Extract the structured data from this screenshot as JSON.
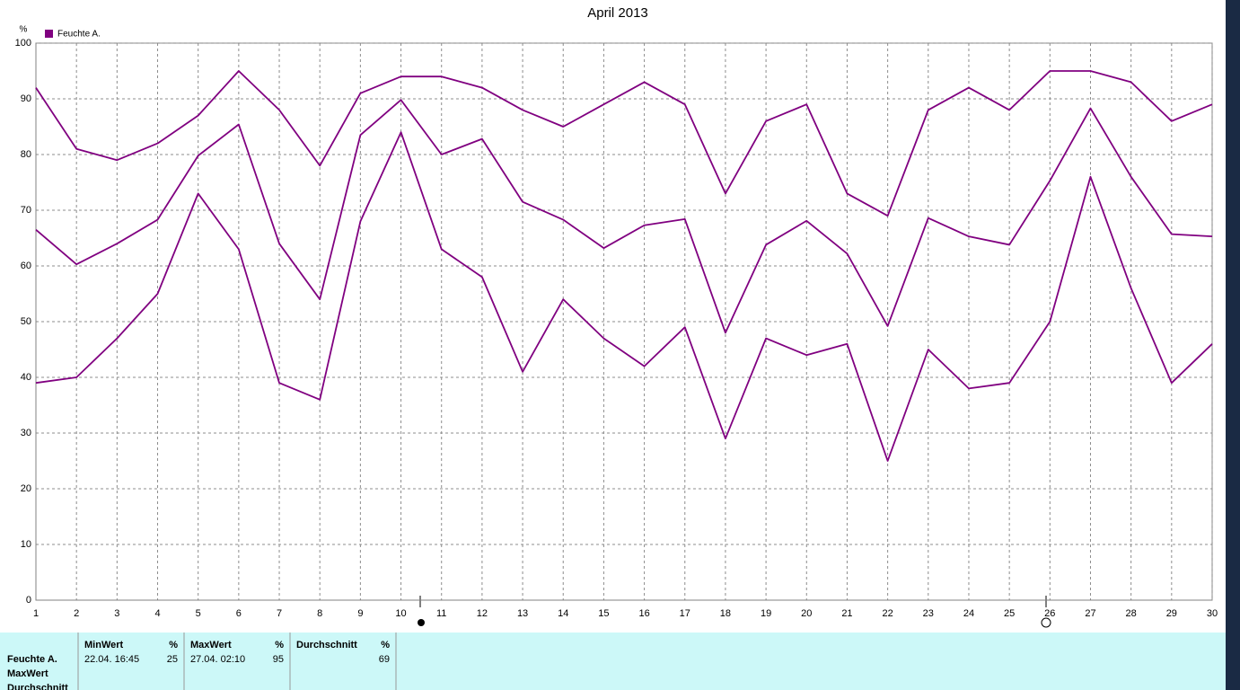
{
  "chart_data": {
    "type": "line",
    "title": "April 2013",
    "y_label": "%",
    "legend": "Feuchte A.",
    "color": "#800080",
    "x": [
      1,
      2,
      3,
      4,
      5,
      6,
      7,
      8,
      9,
      10,
      11,
      12,
      13,
      14,
      15,
      16,
      17,
      18,
      19,
      20,
      21,
      22,
      23,
      24,
      25,
      26,
      27,
      28,
      29,
      30
    ],
    "xlim": [
      1,
      30
    ],
    "xticks": [
      1,
      2,
      3,
      4,
      5,
      6,
      7,
      8,
      9,
      10,
      11,
      12,
      13,
      14,
      15,
      16,
      17,
      18,
      19,
      20,
      21,
      22,
      23,
      24,
      25,
      26,
      27,
      28,
      29,
      30
    ],
    "ylim": [
      0,
      100
    ],
    "yticks": [
      0,
      10,
      20,
      30,
      40,
      50,
      60,
      70,
      80,
      90,
      100
    ],
    "grid": true,
    "series": [
      {
        "values": [
          92,
          81,
          79,
          82,
          87,
          95,
          88,
          78,
          91,
          94,
          94,
          92,
          88,
          85,
          89,
          93,
          89,
          73,
          86,
          89,
          73,
          69,
          88,
          92,
          88,
          95,
          95,
          93,
          86,
          89
        ]
      },
      {
        "values": [
          66.5,
          60.3,
          64,
          68.3,
          79.8,
          85.4,
          64,
          54,
          83.5,
          89.8,
          80,
          82.8,
          71.5,
          68.3,
          63.2,
          67.3,
          68.4,
          48,
          63.8,
          68.1,
          62.2,
          49.2,
          68.6,
          65.3,
          63.8,
          75.3,
          88.3,
          76,
          65.7,
          65.3
        ]
      },
      {
        "values": [
          39,
          40,
          47,
          55,
          73,
          63,
          39,
          36,
          68,
          84,
          63,
          58,
          41,
          54,
          47,
          42,
          49,
          29,
          47,
          44,
          46,
          25,
          45,
          38,
          39,
          50,
          76,
          56,
          39,
          46
        ]
      }
    ]
  },
  "table": {
    "row_labels": [
      "Feuchte A.",
      "MaxWert",
      "Durchschnitt"
    ],
    "columns": [
      {
        "header": "MinWert",
        "unit": "%",
        "time": "22.04.  16:45",
        "value": 25
      },
      {
        "header": "MaxWert",
        "unit": "%",
        "time": "27.04.  02:10",
        "value": 95
      },
      {
        "header": "Durchschnitt",
        "unit": "%",
        "value": 69
      }
    ]
  }
}
